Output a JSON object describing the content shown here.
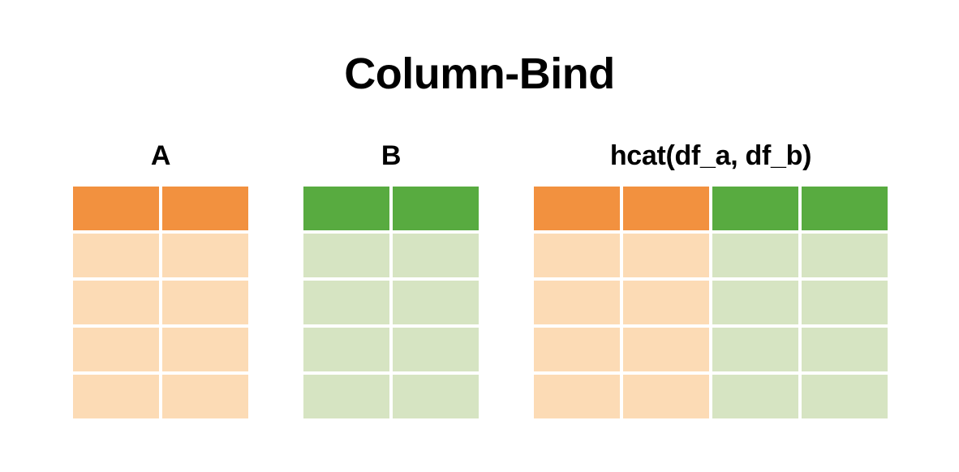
{
  "title": "Column-Bind",
  "colors": {
    "a_header": "#F2913F",
    "a_body": "#FCDBB5",
    "b_header": "#58AB40",
    "b_body": "#D6E4C2"
  },
  "tables": [
    {
      "id": "a",
      "label": "A",
      "columns": [
        "a",
        "a"
      ],
      "body_rows": 4
    },
    {
      "id": "b",
      "label": "B",
      "columns": [
        "b",
        "b"
      ],
      "body_rows": 4
    },
    {
      "id": "result",
      "label": "hcat(df_a, df_b)",
      "columns": [
        "a",
        "a",
        "b",
        "b"
      ],
      "body_rows": 4
    }
  ]
}
